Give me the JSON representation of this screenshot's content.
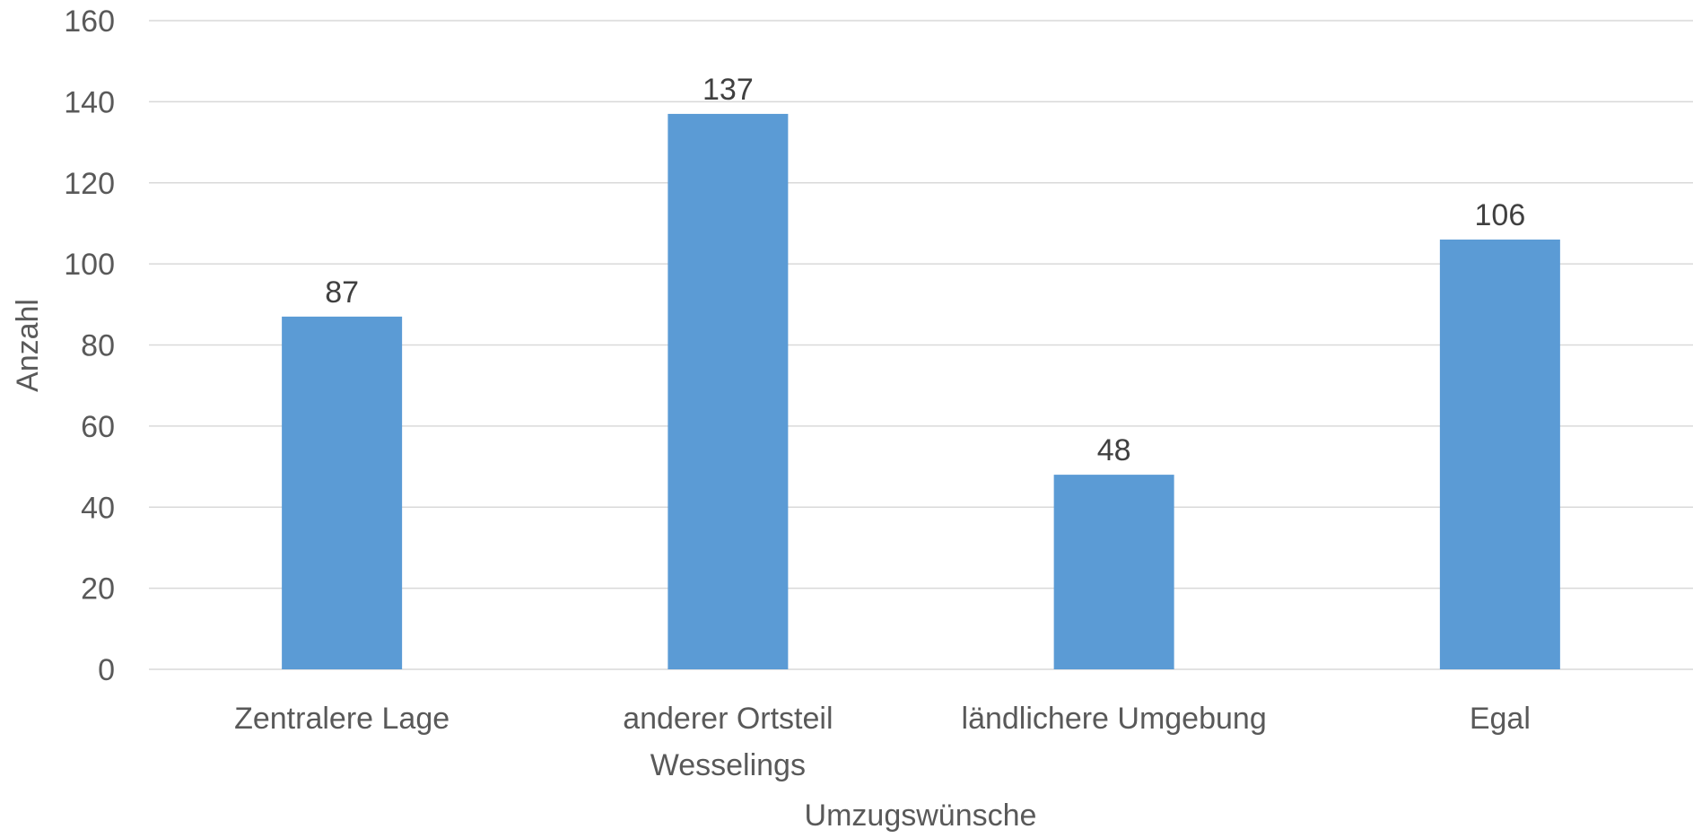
{
  "chart_data": {
    "type": "bar",
    "title": "",
    "xlabel": "Umzugswünsche",
    "ylabel": "Anzahl",
    "categories": [
      [
        "Zentralere Lage"
      ],
      [
        "anderer Ortsteil",
        "Wesselings"
      ],
      [
        "ländlichere Umgebung"
      ],
      [
        "Egal"
      ]
    ],
    "values": [
      87,
      137,
      48,
      106
    ],
    "ylim": [
      0,
      160
    ],
    "yticks": [
      0,
      20,
      40,
      60,
      80,
      100,
      120,
      140,
      160
    ],
    "grid": true,
    "legend": "none",
    "data_labels": true,
    "bar_color": "#5b9bd5",
    "grid_color": "#d9d9d9"
  }
}
